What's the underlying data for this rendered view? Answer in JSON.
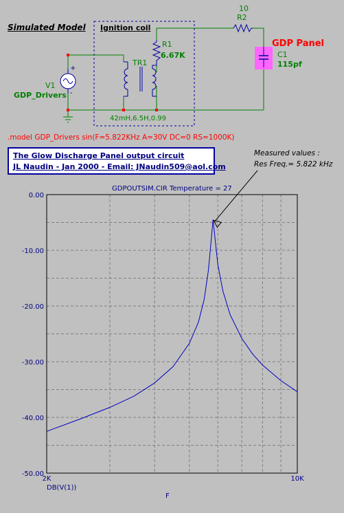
{
  "schematic": {
    "heading": "Simulated Model",
    "ignition_label": "Ignition coil",
    "r2_value": "10",
    "r2_name": "R2",
    "r1_name": "R1",
    "r1_value": "6.67K",
    "tr1_name": "TR1",
    "v1_name": "V1",
    "v1_value": "GDP_Drivers",
    "c1_name": "C1",
    "c1_value": "115pf",
    "gdp_panel": "GDP Panel",
    "coil_params": "42mH,6.5H,0.99",
    "model_line": ".model GDP_Drivers sin(F=5.822KHz A=30V DC=0 RS=1000K)",
    "plus_sign": "+",
    "minus_sign": "-"
  },
  "title_box": {
    "line1": "The Glow Discharge Panel output circuit",
    "line2": "JL Naudin - Jan 2000 - Email: JNaudin509@aol.com"
  },
  "annotation": {
    "line1": "Measured values :",
    "line2": "Res Freq.= 5.822 kHz"
  },
  "chart_data": {
    "type": "line",
    "title": "GDPOUTSIM.CIR Temperature = 27",
    "xlabel": "F",
    "ylabel": "DB(V(1))",
    "x_scale": "log",
    "xlim": [
      2000,
      10000
    ],
    "ylim": [
      -50,
      0
    ],
    "y_ticks": [
      "0.00",
      "-10.00",
      "-20.00",
      "-30.00",
      "-40.00",
      "-50.00"
    ],
    "x_ticks": [
      "2K",
      "10K"
    ],
    "grid": true,
    "series": [
      {
        "color": "#0000c0",
        "x": [
          2000,
          2500,
          3000,
          3500,
          4000,
          4500,
          5000,
          5300,
          5500,
          5650,
          5750,
          5822,
          5900,
          6000,
          6200,
          6500,
          7000,
          7500,
          8000,
          9000,
          10000
        ],
        "y": [
          -42.5,
          -40.2,
          -38.2,
          -36.2,
          -33.8,
          -30.9,
          -26.7,
          -22.9,
          -18.8,
          -13.6,
          -8.3,
          -4.5,
          -8.0,
          -12.5,
          -17.3,
          -21.6,
          -25.8,
          -28.6,
          -30.6,
          -33.4,
          -35.4
        ]
      }
    ]
  },
  "colors": {
    "background": "#c0c0c0",
    "wire": "#008000",
    "component": "#0000a0",
    "node": "#ff0000",
    "capacitor_fill": "#ff66ff"
  }
}
